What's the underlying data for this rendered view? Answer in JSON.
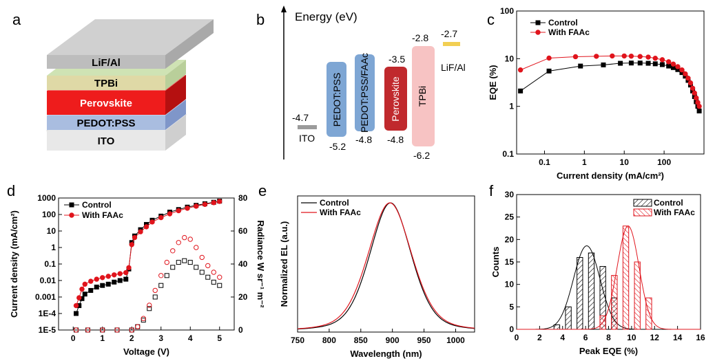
{
  "panel_labels": [
    "a",
    "b",
    "c",
    "d",
    "e",
    "f"
  ],
  "colors": {
    "control": "#000000",
    "faac": "#e0141c"
  },
  "panel_a": {
    "layers": [
      {
        "label": "ITO",
        "color": "#e8e8e8"
      },
      {
        "label": "PEDOT:PSS",
        "color": "#a9bde0"
      },
      {
        "label": "Perovskite",
        "color": "#ee1c1c"
      },
      {
        "label": "TPBi",
        "color": "#dfd9a6"
      },
      {
        "label": "LiF/Al",
        "color": "#bdbdbd"
      }
    ]
  },
  "panel_b": {
    "axis_label": "Energy (eV)",
    "materials": [
      {
        "name": "ITO",
        "top": "-4.7",
        "bottom": "",
        "color": "#9b9b9b"
      },
      {
        "name": "PEDOT:PSS",
        "top": "",
        "bottom": "-5.2",
        "color": "#7ea6d4"
      },
      {
        "name": "PEDOT:PSS/FAAc",
        "top": "",
        "bottom": "-4.8",
        "color": "#7ea6d4"
      },
      {
        "name": "Perovskite",
        "top": "-3.5",
        "bottom": "-4.8",
        "color": "#c0292d"
      },
      {
        "name": "TPBi",
        "top": "-2.8",
        "bottom": "-6.2",
        "color": "#f7c3c3"
      },
      {
        "name": "LiF/Al",
        "top": "-2.7",
        "bottom": "",
        "color": "#f2cf52"
      }
    ]
  },
  "chart_data": [
    {
      "panel": "c",
      "type": "scatter",
      "xlabel": "Current density (mA/cm²)",
      "ylabel": "EQE (%)",
      "xscale": "log",
      "yscale": "log",
      "xlim": [
        0.02,
        1000
      ],
      "ylim": [
        0.1,
        100
      ],
      "legend": "top-left",
      "series": [
        {
          "name": "Control",
          "x": [
            0.025,
            0.13,
            0.8,
            3,
            8,
            15,
            25,
            40,
            60,
            90,
            130,
            170,
            220,
            280,
            340,
            400,
            460,
            520,
            580,
            640,
            700,
            760
          ],
          "y": [
            2.1,
            5.5,
            7.0,
            7.4,
            8.0,
            8.1,
            8.1,
            8.0,
            7.8,
            7.5,
            7.0,
            6.5,
            5.9,
            5.1,
            4.3,
            3.5,
            2.8,
            2.1,
            1.6,
            1.25,
            1.0,
            0.8
          ]
        },
        {
          "name": "With FAAc",
          "x": [
            0.025,
            0.13,
            0.6,
            2,
            5,
            10,
            15,
            25,
            40,
            60,
            90,
            130,
            170,
            220,
            280,
            340,
            400,
            460,
            520,
            580,
            640,
            700,
            760
          ],
          "y": [
            5.8,
            10.3,
            11.0,
            11.2,
            11.4,
            11.4,
            11.3,
            11.1,
            10.8,
            10.2,
            9.5,
            8.6,
            7.7,
            6.8,
            5.8,
            4.8,
            3.9,
            3.1,
            2.4,
            1.9,
            1.5,
            1.2,
            1.0
          ]
        }
      ]
    },
    {
      "panel": "d",
      "type": "scatter",
      "xlabel": "Voltage (V)",
      "ylabel": "Current density (mA/cm²)",
      "y2label": "Radiance W sr⁻¹ m⁻²",
      "xlim": [
        -0.5,
        5.5
      ],
      "yscale": "log",
      "ylim": [
        1e-05,
        1000
      ],
      "y2lim": [
        0,
        80
      ],
      "legend": "top-left",
      "series": [
        {
          "name": "Control",
          "axis": "y",
          "marker": "filled-square",
          "x": [
            0.1,
            0.2,
            0.3,
            0.4,
            0.6,
            0.8,
            1.0,
            1.2,
            1.4,
            1.6,
            1.8,
            1.9,
            2.0,
            2.1,
            2.3,
            2.5,
            2.7,
            3.0,
            3.3,
            3.6,
            3.9,
            4.2,
            4.5,
            4.8,
            5.0
          ],
          "y": [
            0.0001,
            0.0003,
            0.0008,
            0.0015,
            0.0025,
            0.004,
            0.005,
            0.006,
            0.008,
            0.01,
            0.012,
            0.05,
            2.0,
            5.0,
            12,
            25,
            45,
            80,
            140,
            200,
            280,
            360,
            450,
            550,
            650
          ]
        },
        {
          "name": "With FAAc",
          "axis": "y",
          "marker": "filled-circle",
          "x": [
            0.1,
            0.2,
            0.3,
            0.4,
            0.6,
            0.8,
            1.0,
            1.2,
            1.4,
            1.6,
            1.8,
            1.9,
            2.0,
            2.1,
            2.3,
            2.5,
            2.7,
            3.0,
            3.3,
            3.6,
            3.9,
            4.2,
            4.5,
            4.8,
            5.0
          ],
          "y": [
            0.0003,
            0.0009,
            0.003,
            0.006,
            0.009,
            0.012,
            0.015,
            0.018,
            0.022,
            0.026,
            0.03,
            0.06,
            1.5,
            4.0,
            9,
            18,
            35,
            65,
            110,
            170,
            240,
            320,
            410,
            520,
            620
          ]
        },
        {
          "name": "",
          "axis": "y2",
          "marker": "open-square",
          "x": [
            0.1,
            0.5,
            1.0,
            1.5,
            2.0,
            2.2,
            2.4,
            2.6,
            2.8,
            3.0,
            3.2,
            3.4,
            3.6,
            3.8,
            4.0,
            4.2,
            4.4,
            4.6,
            4.8,
            5.0
          ],
          "y": [
            0,
            0,
            0,
            0,
            0,
            2,
            6,
            13,
            20,
            27,
            33,
            38,
            41,
            42,
            41,
            38,
            35,
            32,
            29,
            27
          ]
        },
        {
          "name": "",
          "axis": "y2",
          "marker": "open-circle",
          "x": [
            0.1,
            0.5,
            1.0,
            1.5,
            2.0,
            2.2,
            2.4,
            2.6,
            2.8,
            3.0,
            3.2,
            3.4,
            3.6,
            3.8,
            4.0,
            4.2,
            4.4,
            4.6,
            4.8,
            5.0
          ],
          "y": [
            0,
            0,
            0,
            0,
            0,
            2,
            7,
            15,
            24,
            33,
            41,
            48,
            53,
            56,
            55,
            50,
            44,
            39,
            35,
            32
          ]
        }
      ]
    },
    {
      "panel": "e",
      "type": "line",
      "xlabel": "Wavelength (nm)",
      "ylabel": "Normalized EL (a.u.)",
      "xlim": [
        750,
        1030
      ],
      "legend": "top-left",
      "series": [
        {
          "name": "Control",
          "center": 897,
          "fwhm": 78,
          "peak": 1.0
        },
        {
          "name": "With FAAc",
          "center": 896,
          "fwhm": 82,
          "peak": 1.0
        }
      ]
    },
    {
      "panel": "f",
      "type": "bar",
      "xlabel": "Peak EQE (%)",
      "ylabel": "Counts",
      "xlim": [
        0,
        16
      ],
      "ylim": [
        0,
        30
      ],
      "legend": "top-right",
      "xticks": [
        0,
        2,
        4,
        6,
        8,
        10,
        12,
        14,
        16
      ],
      "yticks": [
        0,
        5,
        10,
        15,
        20,
        25,
        30
      ],
      "series": [
        {
          "name": "Control",
          "bins": [
            3.5,
            4.5,
            5.5,
            6.5,
            7.5,
            8.5
          ],
          "counts": [
            1,
            5,
            16,
            17,
            14,
            7
          ],
          "fit": {
            "mu": 6.1,
            "sigma": 1.15,
            "peak": 18.6
          }
        },
        {
          "name": "With FAAc",
          "bins": [
            7.5,
            8.5,
            9.5,
            10.5,
            11.5
          ],
          "counts": [
            3,
            12,
            23,
            15,
            7
          ],
          "fit": {
            "mu": 9.7,
            "sigma": 0.95,
            "peak": 23
          }
        }
      ]
    }
  ]
}
